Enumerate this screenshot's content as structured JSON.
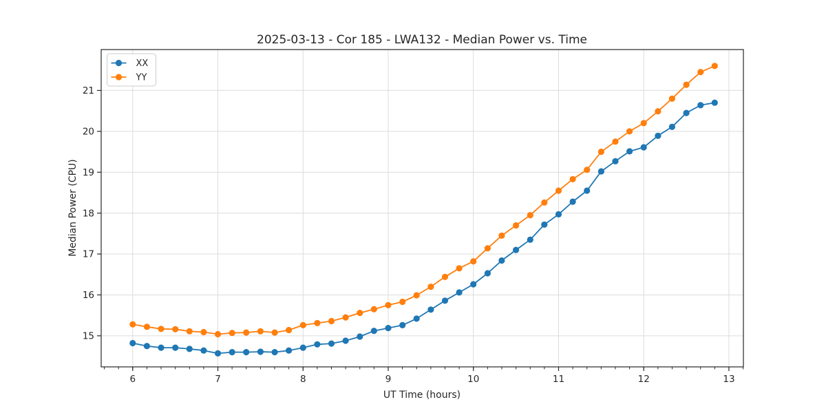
{
  "figure": {
    "title": "2025-03-13 - Cor 185 - LWA132 - Median Power vs. Time"
  },
  "chart_data": {
    "type": "line",
    "title": "2025-03-13 - Cor 185 - LWA132 - Median Power vs. Time",
    "xlabel": "UT Time (hours)",
    "ylabel": "Median Power (CPU)",
    "xlim": [
      5.63,
      13.17
    ],
    "ylim": [
      14.24,
      22.0
    ],
    "x_ticks": [
      6,
      7,
      8,
      9,
      10,
      11,
      12,
      13
    ],
    "x_minor_step": 0.1666667,
    "y_ticks": [
      15,
      16,
      17,
      18,
      19,
      20,
      21
    ],
    "grid": true,
    "legend": {
      "position": "upper left",
      "entries": [
        "XX",
        "YY"
      ]
    },
    "x": [
      6.0,
      6.167,
      6.333,
      6.5,
      6.667,
      6.833,
      7.0,
      7.167,
      7.333,
      7.5,
      7.667,
      7.833,
      8.0,
      8.167,
      8.333,
      8.5,
      8.667,
      8.833,
      9.0,
      9.167,
      9.333,
      9.5,
      9.667,
      9.833,
      10.0,
      10.167,
      10.333,
      10.5,
      10.667,
      10.833,
      11.0,
      11.167,
      11.333,
      11.5,
      11.667,
      11.833,
      12.0,
      12.167,
      12.333,
      12.5,
      12.667,
      12.833
    ],
    "series": [
      {
        "name": "XX",
        "color": "#1f77b4",
        "marker": "circle",
        "values": [
          14.82,
          14.75,
          14.71,
          14.71,
          14.68,
          14.64,
          14.57,
          14.6,
          14.6,
          14.61,
          14.6,
          14.64,
          14.71,
          14.79,
          14.81,
          14.88,
          14.98,
          15.12,
          15.19,
          15.26,
          15.42,
          15.64,
          15.86,
          16.06,
          16.26,
          16.53,
          16.84,
          17.1,
          17.35,
          17.72,
          17.97,
          18.28,
          18.55,
          19.02,
          19.27,
          19.51,
          19.61,
          19.89,
          20.11,
          20.45,
          20.64,
          20.7
        ]
      },
      {
        "name": "YY",
        "color": "#ff7f0e",
        "marker": "circle",
        "values": [
          15.28,
          15.22,
          15.17,
          15.16,
          15.11,
          15.09,
          15.04,
          15.07,
          15.08,
          15.11,
          15.08,
          15.14,
          15.26,
          15.31,
          15.36,
          15.45,
          15.56,
          15.65,
          15.75,
          15.83,
          15.99,
          16.2,
          16.44,
          16.65,
          16.82,
          17.14,
          17.45,
          17.7,
          17.95,
          18.26,
          18.55,
          18.83,
          19.06,
          19.5,
          19.75,
          20.0,
          20.2,
          20.49,
          20.8,
          21.14,
          21.45,
          21.6
        ]
      }
    ]
  },
  "colors": {
    "series_xx": "#1f77b4",
    "series_yy": "#ff7f0e",
    "grid": "#dcdcdc",
    "spine": "#262626",
    "text": "#262626",
    "background": "#ffffff"
  }
}
